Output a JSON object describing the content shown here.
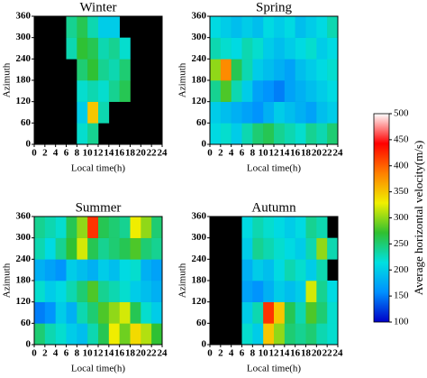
{
  "chart_data": [
    {
      "type": "heatmap",
      "title": "Winter",
      "xlabel": "Local time(h)",
      "ylabel": "Azimuth",
      "xlim": [
        0,
        24
      ],
      "xticks": [
        0,
        2,
        4,
        6,
        8,
        10,
        12,
        14,
        16,
        18,
        20,
        22,
        24
      ],
      "ylim": [
        0,
        360
      ],
      "yticks": [
        0,
        60,
        120,
        180,
        240,
        300,
        360
      ],
      "x_bins": [
        0,
        2,
        4,
        6,
        8,
        10,
        12,
        14,
        16,
        18,
        20,
        22,
        24
      ],
      "y_bins": [
        0,
        60,
        120,
        180,
        240,
        300,
        360
      ],
      "values": [
        [
          null,
          null,
          null,
          null,
          220,
          240,
          null,
          null,
          null,
          null,
          null,
          null
        ],
        [
          null,
          null,
          null,
          null,
          200,
          350,
          230,
          null,
          null,
          null,
          null,
          null
        ],
        [
          null,
          null,
          null,
          null,
          220,
          230,
          220,
          240,
          260,
          null,
          null,
          null
        ],
        [
          null,
          null,
          null,
          null,
          250,
          270,
          240,
          230,
          250,
          null,
          null,
          null
        ],
        [
          null,
          null,
          null,
          230,
          270,
          260,
          230,
          240,
          220,
          null,
          null,
          null
        ],
        [
          null,
          null,
          null,
          240,
          260,
          230,
          200,
          200,
          null,
          null,
          null,
          null
        ]
      ]
    },
    {
      "type": "heatmap",
      "title": "Spring",
      "xlabel": "Local time(h)",
      "ylabel": "Azimuth",
      "xlim": [
        0,
        24
      ],
      "xticks": [
        0,
        2,
        4,
        6,
        8,
        10,
        12,
        14,
        16,
        18,
        20,
        22,
        24
      ],
      "ylim": [
        0,
        360
      ],
      "yticks": [
        0,
        60,
        120,
        180,
        240,
        300,
        360
      ],
      "x_bins": [
        0,
        2,
        4,
        6,
        8,
        10,
        12,
        14,
        16,
        18,
        20,
        22,
        24
      ],
      "y_bins": [
        0,
        60,
        120,
        180,
        240,
        300,
        360
      ],
      "values": [
        [
          210,
          220,
          200,
          230,
          250,
          260,
          240,
          230,
          220,
          240,
          230,
          250
        ],
        [
          200,
          190,
          180,
          170,
          160,
          180,
          200,
          190,
          180,
          170,
          190,
          200
        ],
        [
          240,
          280,
          230,
          200,
          170,
          160,
          150,
          170,
          180,
          190,
          200,
          210
        ],
        [
          300,
          380,
          260,
          230,
          200,
          190,
          180,
          170,
          190,
          200,
          210,
          220
        ],
        [
          230,
          220,
          210,
          230,
          220,
          200,
          190,
          200,
          210,
          220,
          200,
          210
        ],
        [
          210,
          200,
          190,
          200,
          190,
          210,
          200,
          210,
          190,
          200,
          210,
          230
        ]
      ]
    },
    {
      "type": "heatmap",
      "title": "Summer",
      "xlabel": "Local time(h)",
      "ylabel": "Azimuth",
      "xlim": [
        0,
        24
      ],
      "xticks": [
        0,
        2,
        4,
        6,
        8,
        10,
        12,
        14,
        16,
        18,
        20,
        22,
        24
      ],
      "ylim": [
        0,
        360
      ],
      "yticks": [
        0,
        60,
        120,
        180,
        240,
        300,
        360
      ],
      "x_bins": [
        0,
        2,
        4,
        6,
        8,
        10,
        12,
        14,
        16,
        18,
        20,
        22,
        24
      ],
      "y_bins": [
        0,
        60,
        120,
        180,
        240,
        300,
        360
      ],
      "values": [
        [
          250,
          230,
          220,
          200,
          190,
          230,
          260,
          330,
          290,
          340,
          310,
          270
        ],
        [
          150,
          160,
          200,
          180,
          230,
          250,
          280,
          300,
          320,
          260,
          220,
          200
        ],
        [
          220,
          200,
          210,
          230,
          250,
          280,
          240,
          230,
          220,
          200,
          190,
          180
        ],
        [
          180,
          170,
          160,
          200,
          190,
          180,
          200,
          190,
          210,
          220,
          180,
          170
        ],
        [
          230,
          210,
          240,
          270,
          320,
          260,
          240,
          250,
          260,
          280,
          250,
          240
        ],
        [
          240,
          230,
          220,
          260,
          300,
          420,
          260,
          250,
          240,
          330,
          300,
          250
        ]
      ]
    },
    {
      "type": "heatmap",
      "title": "Autumn",
      "xlabel": "Local time(h)",
      "ylabel": "Azimuth",
      "xlim": [
        0,
        24
      ],
      "xticks": [
        0,
        2,
        4,
        6,
        8,
        10,
        12,
        14,
        16,
        18,
        20,
        22,
        24
      ],
      "ylim": [
        0,
        360
      ],
      "yticks": [
        0,
        60,
        120,
        180,
        240,
        300,
        360
      ],
      "x_bins": [
        0,
        2,
        4,
        6,
        8,
        10,
        12,
        14,
        16,
        18,
        20,
        22,
        24
      ],
      "y_bins": [
        0,
        60,
        120,
        180,
        240,
        300,
        360
      ],
      "values": [
        [
          null,
          null,
          null,
          220,
          200,
          350,
          300,
          250,
          240,
          250,
          230,
          220
        ],
        [
          null,
          null,
          null,
          200,
          230,
          420,
          350,
          260,
          230,
          280,
          250,
          220
        ],
        [
          null,
          null,
          null,
          170,
          160,
          180,
          200,
          190,
          200,
          320,
          240,
          210
        ],
        [
          null,
          null,
          null,
          180,
          200,
          190,
          210,
          230,
          220,
          200,
          230,
          null
        ],
        [
          null,
          null,
          null,
          200,
          240,
          230,
          220,
          210,
          200,
          230,
          300,
          230
        ],
        [
          null,
          null,
          null,
          210,
          230,
          220,
          210,
          200,
          210,
          240,
          230,
          null
        ]
      ]
    }
  ],
  "colorbar": {
    "label": "Average horizontal velocity(m/s)",
    "lim": [
      100,
      500
    ],
    "ticks": [
      100,
      150,
      200,
      250,
      300,
      350,
      400,
      450,
      500
    ],
    "colors": [
      "#0000c8",
      "#0090ff",
      "#00e0e0",
      "#30c030",
      "#f0f000",
      "#ff8000",
      "#ff0000",
      "#ffffff"
    ]
  }
}
